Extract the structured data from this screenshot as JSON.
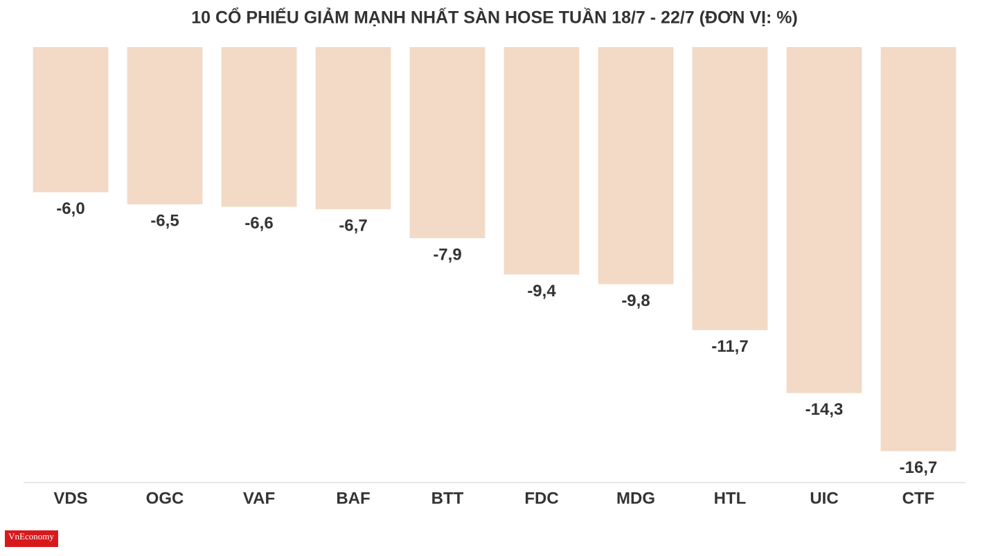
{
  "chart_data": {
    "type": "bar",
    "title": "10 CỔ PHIẾU GIẢM MẠNH NHẤT SÀN HOSE TUẦN 18/7 - 22/7 (ĐƠN VỊ: %)",
    "categories": [
      "VDS",
      "OGC",
      "VAF",
      "BAF",
      "BTT",
      "FDC",
      "MDG",
      "HTL",
      "UIC",
      "CTF"
    ],
    "values": [
      -6.0,
      -6.5,
      -6.6,
      -6.7,
      -7.9,
      -9.4,
      -9.8,
      -11.7,
      -14.3,
      -16.7
    ],
    "value_labels": [
      "-6,0",
      "-6,5",
      "-6,6",
      "-6,7",
      "-7,9",
      "-9,4",
      "-9,8",
      "-11,7",
      "-14,3",
      "-16,7"
    ],
    "color": "#f2dac6",
    "ylim": [
      -18,
      0
    ],
    "logo": "VnEconomy"
  }
}
